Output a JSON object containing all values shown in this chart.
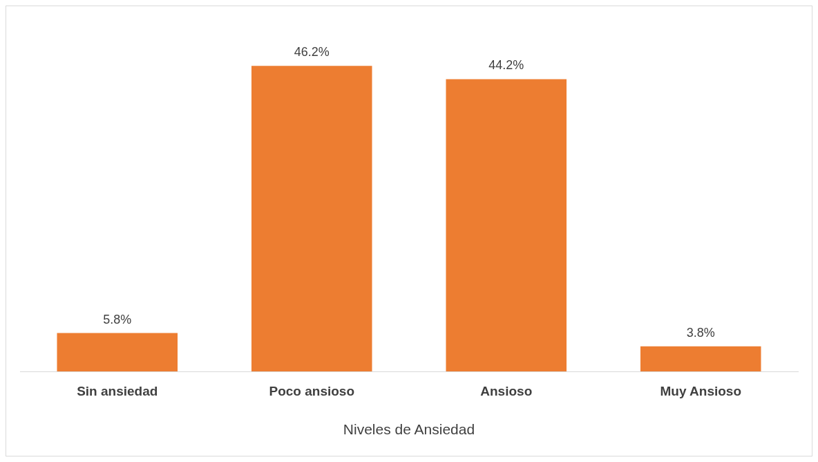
{
  "chart_data": {
    "type": "bar",
    "categories": [
      "Sin ansiedad",
      "Poco ansioso",
      "Ansioso",
      "Muy Ansioso"
    ],
    "xlabel": "Niveles de Ansiedad",
    "values": [
      5.8,
      46.2,
      44.2,
      3.8
    ],
    "value_labels": [
      "5.8%",
      "46.2%",
      "44.2%",
      "3.8%"
    ],
    "color": "#ed7d31",
    "grid": false,
    "legend": false
  }
}
